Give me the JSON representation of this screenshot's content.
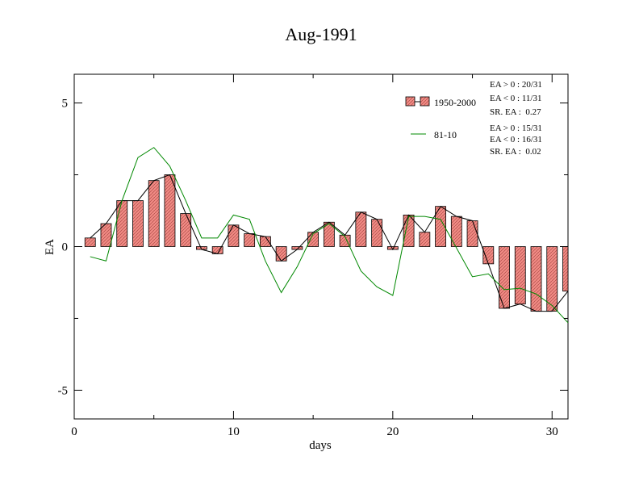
{
  "colors": {
    "bar_fill": "#f08a84",
    "bar_stroke": "#000000",
    "line_1950_2000": "#000000",
    "line_81_10": "#008800"
  },
  "chart_data": {
    "type": "bar",
    "title": "Aug-1991",
    "xlabel": "days",
    "ylabel": "EA",
    "xlim": [
      0,
      31
    ],
    "ylim": [
      -6,
      6
    ],
    "xticks": [
      0,
      10,
      20,
      30
    ],
    "yticks": [
      -5,
      0,
      5
    ],
    "grid": false,
    "legend_position": "top-right",
    "x": [
      1,
      2,
      3,
      4,
      5,
      6,
      7,
      8,
      9,
      10,
      11,
      12,
      13,
      14,
      15,
      16,
      17,
      18,
      19,
      20,
      21,
      22,
      23,
      24,
      25,
      26,
      27,
      28,
      29,
      30,
      31
    ],
    "series": [
      {
        "name": "1950-2000",
        "type": "bar+line",
        "values": [
          0.3,
          0.8,
          1.6,
          1.6,
          2.3,
          2.5,
          1.15,
          -0.1,
          -0.25,
          0.75,
          0.45,
          0.35,
          -0.5,
          -0.1,
          0.5,
          0.85,
          0.4,
          1.2,
          0.95,
          -0.1,
          1.1,
          0.5,
          1.4,
          1.05,
          0.9,
          -0.6,
          -2.15,
          -2.0,
          -2.25,
          -2.25,
          -1.55
        ]
      },
      {
        "name": "81-10",
        "type": "line",
        "values": [
          -0.35,
          -0.5,
          1.6,
          3.1,
          3.45,
          2.8,
          1.6,
          0.3,
          0.3,
          1.1,
          0.95,
          -0.5,
          -1.6,
          -0.7,
          0.45,
          0.8,
          0.35,
          -0.85,
          -1.4,
          -1.7,
          1.05,
          1.05,
          0.95,
          -0.05,
          -1.05,
          -0.95,
          -1.5,
          -1.45,
          -1.65,
          -2.05,
          -2.65
        ]
      }
    ],
    "annotations": {
      "line1": "EA > 0 : 20/31",
      "line2": "EA < 0 : 11/31",
      "line3": "SR. EA :  0.27",
      "line4": "EA > 0 : 15/31",
      "line5": "EA < 0 : 16/31",
      "line6": "SR. EA :  0.02"
    }
  }
}
